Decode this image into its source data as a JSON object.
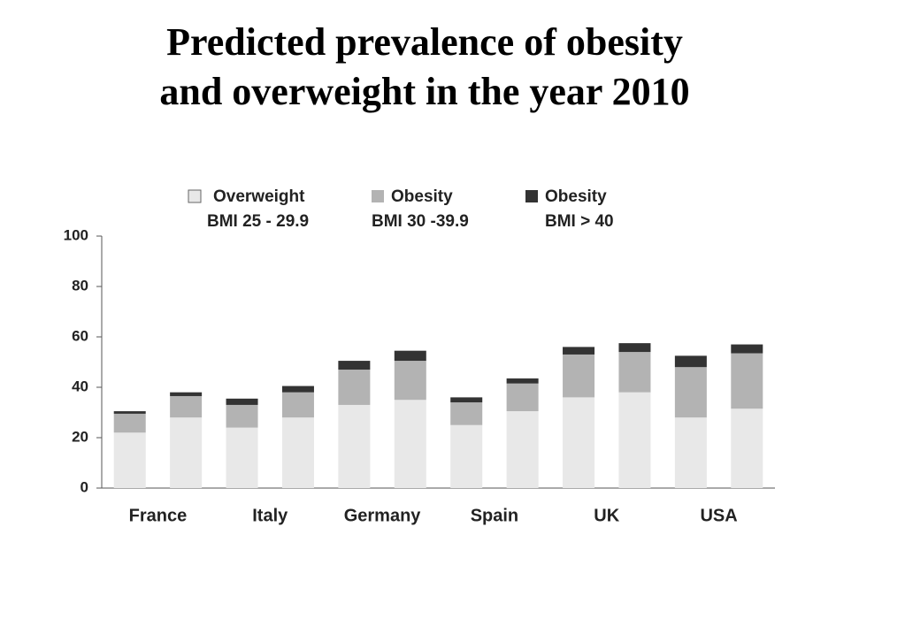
{
  "chart_data": {
    "type": "stacked-bar",
    "title": [
      "Predicted prevalence of obesity",
      "and overweight in the year 2010"
    ],
    "groups": [
      "France",
      "Italy",
      "Germany",
      "Spain",
      "UK",
      "USA"
    ],
    "series": [
      {
        "name": "Overweight",
        "range": "BMI 25 - 29.9",
        "color": "#e8e8e8",
        "values": [
          22,
          28,
          24,
          28,
          33,
          35,
          25,
          30.5,
          36,
          38,
          28,
          31.5
        ]
      },
      {
        "name": "Obesity",
        "range": "BMI 30 -39.9",
        "color": "#b3b3b3",
        "values": [
          7.5,
          8.5,
          9,
          10,
          14,
          15.5,
          9,
          11,
          17,
          16,
          20,
          22
        ]
      },
      {
        "name": "Obesity",
        "range": "BMI > 40",
        "color": "#333333",
        "values": [
          1,
          1.5,
          2.5,
          2.5,
          3.5,
          4,
          2,
          2,
          3,
          3.5,
          4.5,
          3.5
        ]
      }
    ],
    "ylim": [
      0,
      100
    ],
    "yticks": [
      0,
      20,
      40,
      60,
      80,
      100
    ]
  }
}
